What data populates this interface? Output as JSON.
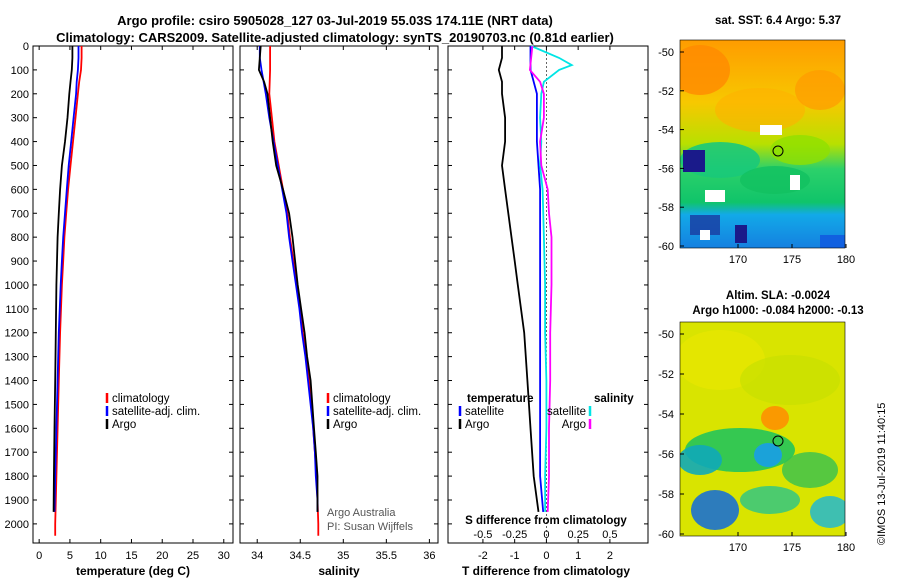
{
  "header": {
    "title_line1": "Argo profile: csiro 5905028_127 03-Jul-2019 55.03S 174.11E (NRT data)",
    "title_line2": "Climatology: CARS2009. Satellite-adjusted climatology: synTS_20190703.nc (0.81d earlier)"
  },
  "colors": {
    "climatology": "#ff0000",
    "satellite": "#0000ff",
    "argo": "#000000",
    "sat_salinity": "#00e5e5",
    "salinity_clim": "#ff00ff"
  },
  "credit": {
    "line1": "Argo Australia",
    "line2": "PI: Susan Wijffels"
  },
  "stamp": "©IMOS 13-Jul-2019 11:40:15",
  "maps": {
    "sst": {
      "title": "sat. SST: 6.4 Argo: 5.37",
      "lat_ticks": [
        "-50",
        "-52",
        "-54",
        "-56",
        "-58",
        "-60"
      ],
      "lon_ticks": [
        "170",
        "175",
        "180"
      ]
    },
    "sla": {
      "title_line1": "Altim. SLA: -0.0024",
      "title_line2": "Argo h1000: -0.084 h2000: -0.13",
      "lat_ticks": [
        "-50",
        "-52",
        "-54",
        "-56",
        "-58",
        "-60"
      ],
      "lon_ticks": [
        "170",
        "175",
        "180"
      ]
    }
  },
  "chart_data": [
    {
      "type": "line",
      "panel": "temperature",
      "xlabel": "temperature (deg C)",
      "ylabel": "",
      "xlim": [
        -1,
        31.5
      ],
      "ylim": [
        2080,
        0
      ],
      "x_ticks": [
        0,
        5,
        10,
        15,
        20,
        25,
        30
      ],
      "y_ticks": [
        0,
        100,
        200,
        300,
        400,
        500,
        600,
        700,
        800,
        900,
        1000,
        1100,
        1200,
        1300,
        1400,
        1500,
        1600,
        1700,
        1800,
        1900,
        2000
      ],
      "legend": [
        "climatology",
        "satellite-adj. clim.",
        "Argo"
      ],
      "legend_position": "lower-right",
      "series": [
        {
          "name": "climatology",
          "depth": [
            0,
            50,
            100,
            150,
            200,
            300,
            400,
            500,
            600,
            700,
            800,
            900,
            1000,
            1200,
            1400,
            1600,
            1800,
            2000,
            2050
          ],
          "values": [
            6.9,
            6.9,
            6.8,
            6.5,
            6.3,
            5.9,
            5.5,
            5.1,
            4.7,
            4.4,
            4.1,
            3.9,
            3.7,
            3.4,
            3.2,
            3.0,
            2.8,
            2.6,
            2.6
          ]
        },
        {
          "name": "satellite-adj. clim.",
          "depth": [
            0,
            50,
            100,
            150,
            200,
            300,
            400,
            500,
            600,
            700,
            800,
            900,
            1000,
            1200,
            1400,
            1600,
            1800,
            1950
          ],
          "values": [
            6.4,
            6.4,
            6.3,
            6.1,
            6.0,
            5.6,
            5.2,
            4.8,
            4.5,
            4.2,
            3.9,
            3.7,
            3.5,
            3.2,
            3.0,
            2.8,
            2.6,
            2.5
          ]
        },
        {
          "name": "Argo",
          "depth": [
            0,
            50,
            100,
            150,
            200,
            300,
            400,
            500,
            600,
            700,
            800,
            900,
            1000,
            1200,
            1400,
            1600,
            1800,
            1950
          ],
          "values": [
            5.4,
            5.4,
            5.3,
            5.1,
            4.9,
            4.6,
            4.2,
            3.7,
            3.4,
            3.2,
            3.0,
            2.9,
            2.8,
            2.7,
            2.6,
            2.5,
            2.4,
            2.35
          ]
        }
      ]
    },
    {
      "type": "line",
      "panel": "salinity",
      "xlabel": "salinity",
      "xlim": [
        33.8,
        36.1
      ],
      "ylim": [
        2080,
        0
      ],
      "x_ticks": [
        34,
        34.5,
        35,
        35.5,
        36
      ],
      "x_tick_labels": [
        "34",
        "34.5",
        "35",
        "35.5",
        "36"
      ],
      "legend": [
        "climatology",
        "satellite-adj. clim.",
        "Argo"
      ],
      "legend_position": "lower-right",
      "series": [
        {
          "name": "climatology",
          "depth": [
            0,
            50,
            100,
            200,
            300,
            400,
            500,
            600,
            700,
            800,
            900,
            1000,
            1100,
            1200,
            1300,
            1400,
            1500,
            1600,
            1700,
            1800,
            1900,
            2000,
            2050
          ],
          "values": [
            34.15,
            34.15,
            34.15,
            34.14,
            34.17,
            34.2,
            34.25,
            34.3,
            34.35,
            34.38,
            34.42,
            34.46,
            34.5,
            34.53,
            34.57,
            34.6,
            34.63,
            34.65,
            34.67,
            34.69,
            34.7,
            34.71,
            34.71
          ]
        },
        {
          "name": "satellite-adj. clim.",
          "depth": [
            0,
            50,
            100,
            200,
            300,
            400,
            500,
            600,
            700,
            800,
            900,
            1000,
            1100,
            1200,
            1300,
            1400,
            1500,
            1600,
            1700,
            1800,
            1900,
            1950
          ],
          "values": [
            34.03,
            34.03,
            34.05,
            34.1,
            34.14,
            34.19,
            34.24,
            34.29,
            34.34,
            34.37,
            34.41,
            34.45,
            34.49,
            34.52,
            34.56,
            34.59,
            34.62,
            34.65,
            34.67,
            34.68,
            34.7,
            34.7
          ]
        },
        {
          "name": "Argo",
          "depth": [
            0,
            50,
            100,
            150,
            200,
            300,
            400,
            500,
            600,
            700,
            800,
            900,
            1000,
            1100,
            1200,
            1300,
            1400,
            1500,
            1600,
            1700,
            1800,
            1900,
            1950
          ],
          "values": [
            34.04,
            34.03,
            34.02,
            34.08,
            34.12,
            34.15,
            34.18,
            34.22,
            34.3,
            34.37,
            34.41,
            34.44,
            34.47,
            34.51,
            34.55,
            34.58,
            34.62,
            34.64,
            34.66,
            34.68,
            34.7,
            34.7,
            34.7
          ]
        }
      ]
    },
    {
      "type": "line",
      "panel": "difference",
      "xlabel": "T difference from climatology",
      "xlabel_top": "S difference from climatology",
      "xlim": [
        -3.1,
        3.2
      ],
      "ylim": [
        2080,
        0
      ],
      "x_ticks": [
        -2,
        -1,
        0,
        1,
        2
      ],
      "x_ticks_s": [
        -0.5,
        -0.25,
        0,
        0.25,
        0.5
      ],
      "x_tick_labels_s": [
        "-0.5",
        "-0.25",
        "0",
        "0.25",
        "0.5"
      ],
      "legend_temperature_title": "temperature",
      "legend_salinity_title": "salinity",
      "legend_temperature": [
        "satellite",
        "Argo"
      ],
      "legend_salinity": [
        "satellite",
        "Argo"
      ],
      "series": [
        {
          "name": "T satellite",
          "depth": [
            0,
            100,
            200,
            300,
            400,
            600,
            800,
            1000,
            1200,
            1400,
            1600,
            1800,
            1950
          ],
          "values": [
            -0.5,
            -0.5,
            -0.3,
            -0.3,
            -0.3,
            -0.2,
            -0.2,
            -0.2,
            -0.2,
            -0.2,
            -0.2,
            -0.2,
            -0.1
          ]
        },
        {
          "name": "T Argo",
          "depth": [
            0,
            50,
            100,
            150,
            200,
            300,
            400,
            500,
            600,
            700,
            800,
            900,
            1000,
            1200,
            1400,
            1600,
            1800,
            1950
          ],
          "values": [
            -1.4,
            -1.4,
            -1.5,
            -1.4,
            -1.4,
            -1.3,
            -1.3,
            -1.4,
            -1.3,
            -1.2,
            -1.1,
            -1.0,
            -0.9,
            -0.7,
            -0.6,
            -0.5,
            -0.4,
            -0.25
          ]
        },
        {
          "name": "S satellite",
          "depth": [
            0,
            50,
            80,
            100,
            150,
            200,
            300,
            400,
            500,
            600,
            800,
            1000,
            1200,
            1400,
            1600,
            1800,
            1950
          ],
          "values": [
            -0.12,
            0.1,
            0.2,
            0.1,
            -0.02,
            -0.04,
            -0.05,
            -0.04,
            -0.05,
            -0.03,
            -0.02,
            -0.01,
            -0.01,
            0,
            0,
            -0.01,
            -0.01
          ]
        },
        {
          "name": "S Argo",
          "depth": [
            0,
            100,
            150,
            200,
            300,
            400,
            500,
            600,
            700,
            800,
            1000,
            1200,
            1400,
            1600,
            1800,
            1950
          ],
          "values": [
            -0.11,
            -0.13,
            -0.05,
            -0.02,
            -0.02,
            -0.05,
            -0.04,
            0.01,
            0.02,
            0.04,
            0.04,
            0.03,
            0.03,
            0.02,
            0.02,
            0.01
          ]
        }
      ]
    }
  ]
}
